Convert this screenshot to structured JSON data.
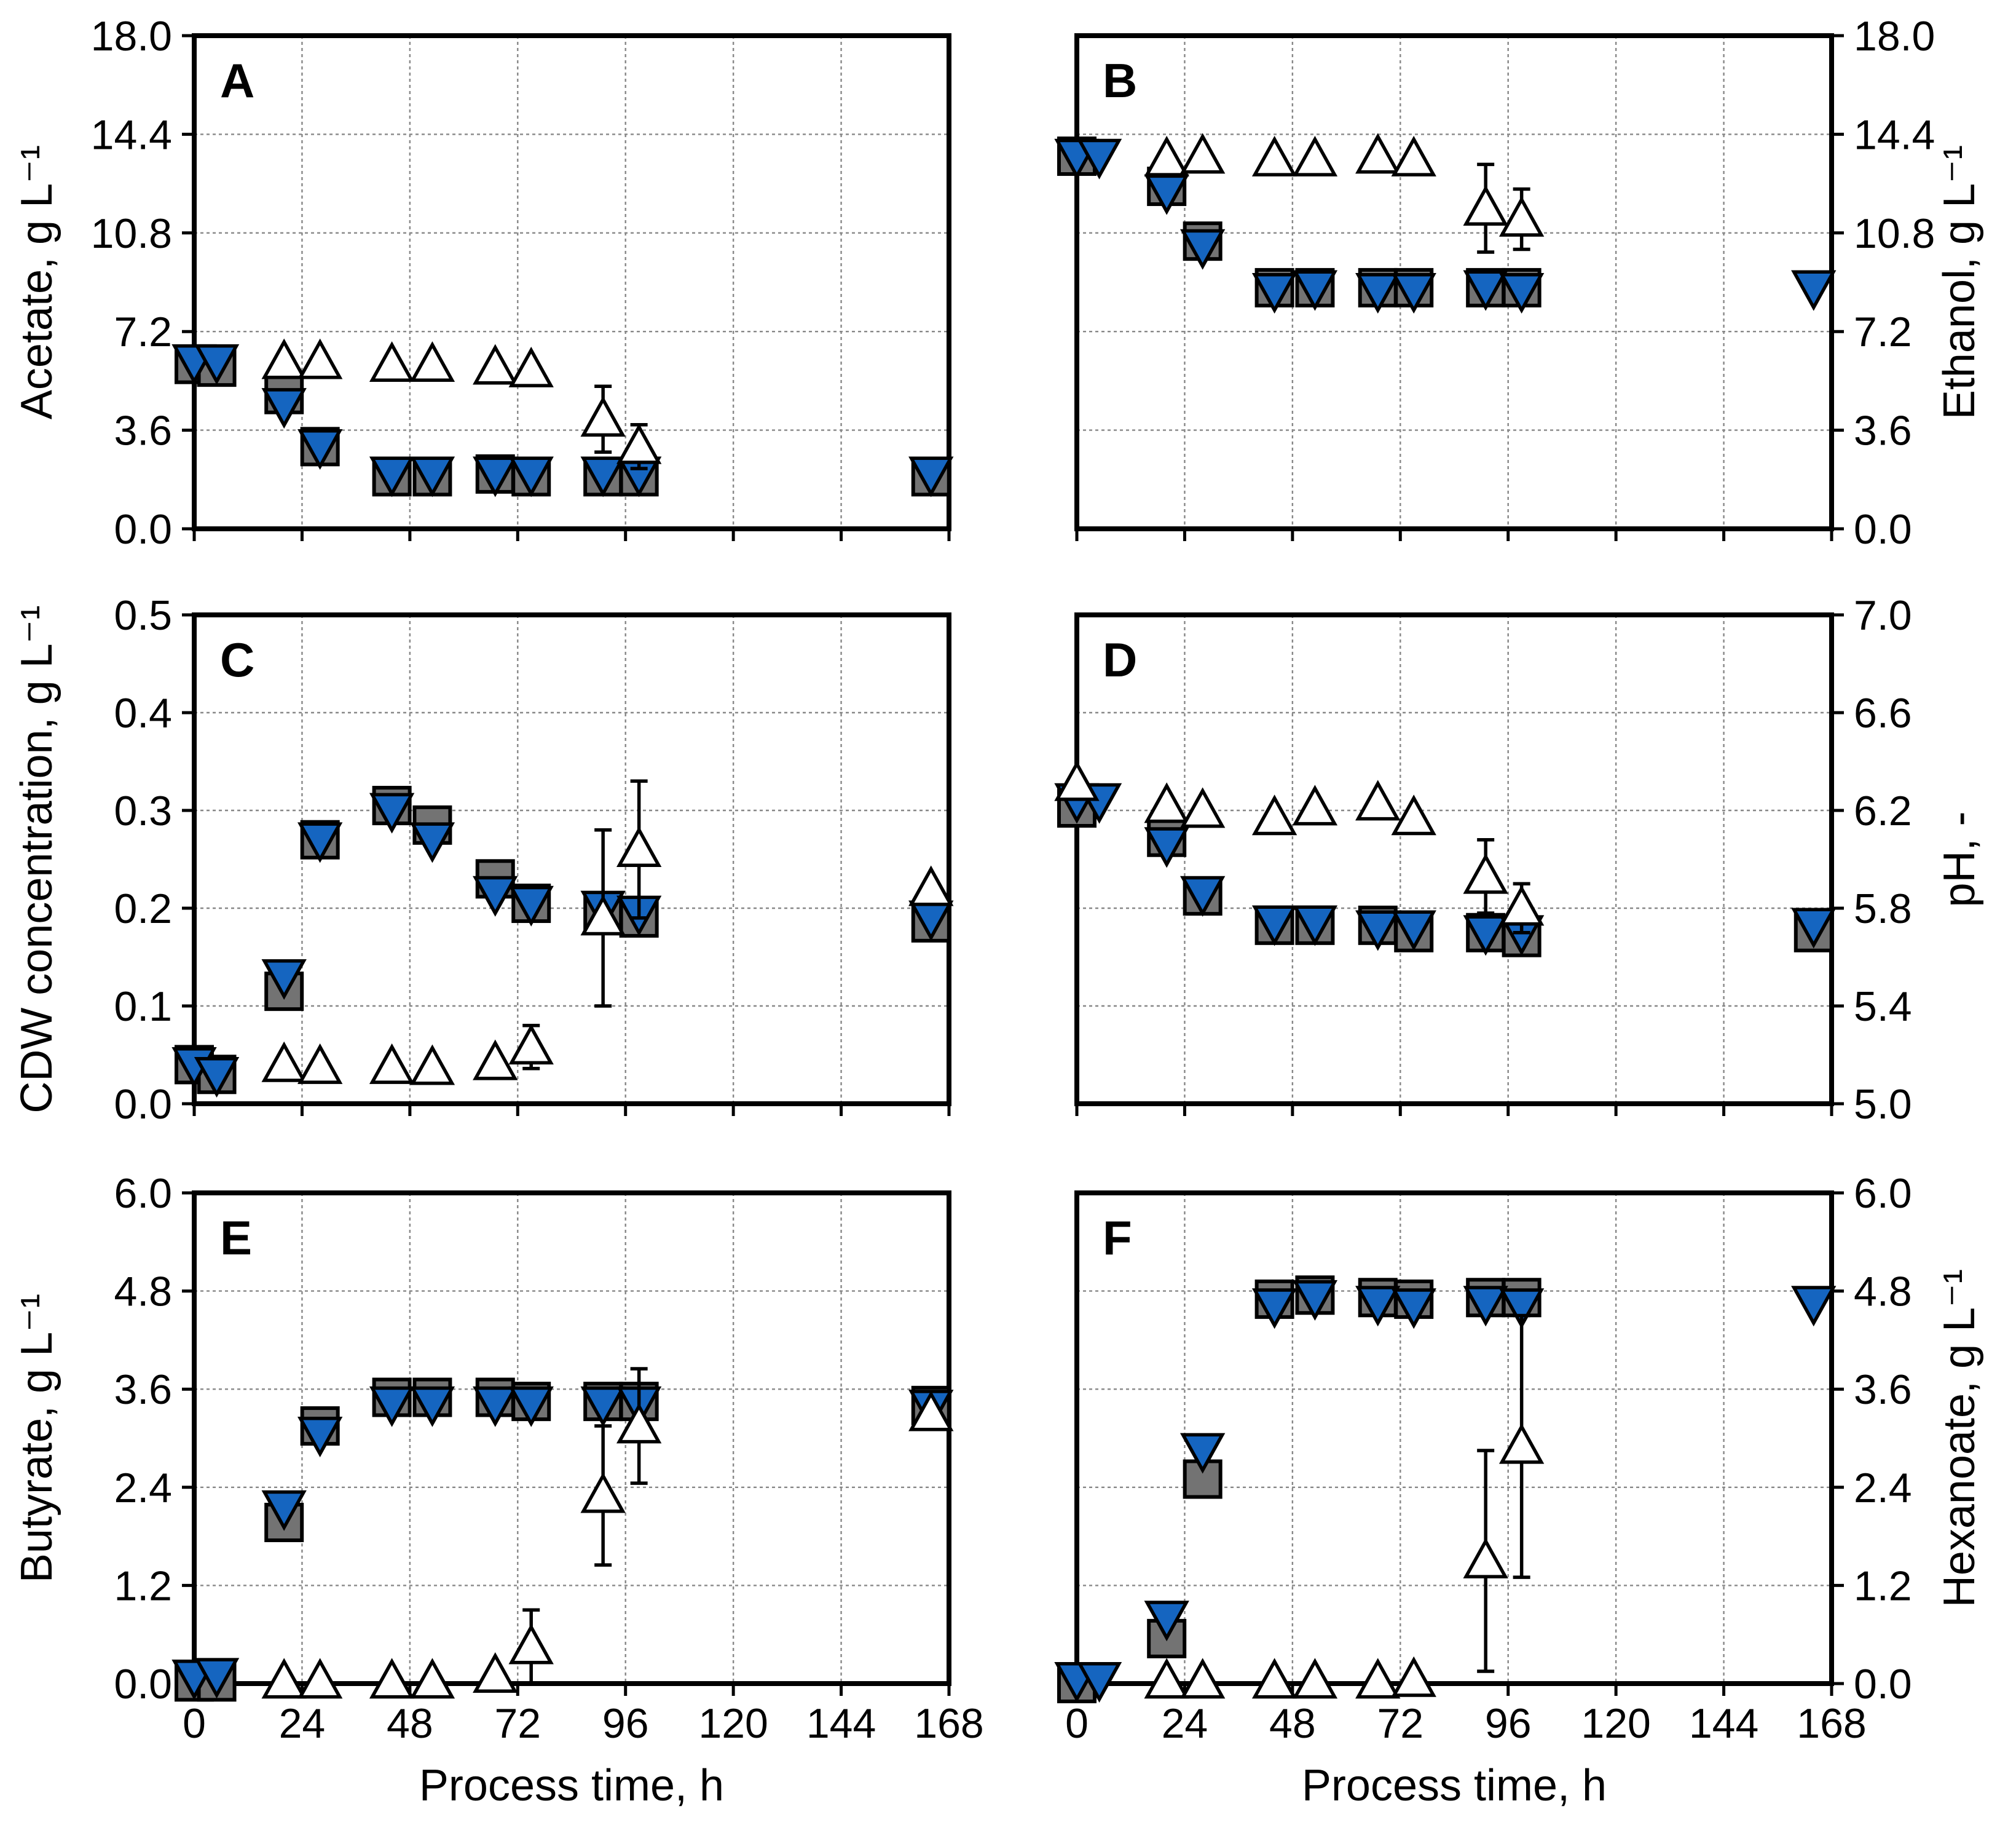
{
  "chart_data": [
    {
      "type": "scatter",
      "panel": "A",
      "ylabel": "Acetate, g L⁻¹",
      "xlabel": "",
      "xlim": [
        0,
        168
      ],
      "xticks": [
        0,
        24,
        48,
        72,
        96,
        120,
        144,
        168
      ],
      "xtick_labels": [
        "",
        "",
        "",
        "",
        "",
        "",
        "",
        ""
      ],
      "ylim": [
        0,
        18
      ],
      "yticks": [
        "0.0",
        "3.6",
        "7.2",
        "10.8",
        "14.4",
        "18.0"
      ],
      "y_axis_side": "left",
      "grid": true,
      "series": [
        {
          "marker": "square-gray",
          "points": [
            {
              "x": 0,
              "y": 6.0
            },
            {
              "x": 5,
              "y": 5.9
            },
            {
              "x": 20,
              "y": 4.9
            },
            {
              "x": 28,
              "y": 3.0
            },
            {
              "x": 44,
              "y": 1.9
            },
            {
              "x": 53,
              "y": 1.9
            },
            {
              "x": 67,
              "y": 2.0
            },
            {
              "x": 75,
              "y": 1.9
            },
            {
              "x": 91,
              "y": 1.9
            },
            {
              "x": 99,
              "y": 1.9
            },
            {
              "x": 164,
              "y": 1.9
            }
          ]
        },
        {
          "marker": "triangle-down-blue",
          "points": [
            {
              "x": 0,
              "y": 6.1
            },
            {
              "x": 5,
              "y": 6.1
            },
            {
              "x": 20,
              "y": 4.5
            },
            {
              "x": 28,
              "y": 3.0
            },
            {
              "x": 44,
              "y": 2.0
            },
            {
              "x": 53,
              "y": 2.0
            },
            {
              "x": 67,
              "y": 2.0
            },
            {
              "x": 75,
              "y": 2.0
            },
            {
              "x": 91,
              "y": 2.0
            },
            {
              "x": 99,
              "y": 2.0
            },
            {
              "x": 164,
              "y": 2.0
            }
          ]
        },
        {
          "marker": "triangle-up-open",
          "points": [
            {
              "x": 20,
              "y": 6.1
            },
            {
              "x": 28,
              "y": 6.1
            },
            {
              "x": 44,
              "y": 6.0
            },
            {
              "x": 53,
              "y": 6.0
            },
            {
              "x": 67,
              "y": 5.9
            },
            {
              "x": 75,
              "y": 5.8
            },
            {
              "x": 91,
              "y": 4.0,
              "err": 1.2
            },
            {
              "x": 99,
              "y": 3.0,
              "err": 0.8
            }
          ]
        }
      ]
    },
    {
      "type": "scatter",
      "panel": "B",
      "ylabel": "Ethanol, g L⁻¹",
      "xlabel": "",
      "xlim": [
        0,
        168
      ],
      "xticks": [
        0,
        24,
        48,
        72,
        96,
        120,
        144,
        168
      ],
      "xtick_labels": [
        "",
        "",
        "",
        "",
        "",
        "",
        "",
        ""
      ],
      "ylim": [
        0,
        18
      ],
      "yticks": [
        "0.0",
        "3.6",
        "7.2",
        "10.8",
        "14.4",
        "18.0"
      ],
      "y_axis_side": "right",
      "grid": true,
      "series": [
        {
          "marker": "square-gray",
          "points": [
            {
              "x": 0,
              "y": 13.6
            },
            {
              "x": 20,
              "y": 12.5
            },
            {
              "x": 28,
              "y": 10.5
            },
            {
              "x": 44,
              "y": 8.8
            },
            {
              "x": 53,
              "y": 8.8
            },
            {
              "x": 67,
              "y": 8.8
            },
            {
              "x": 75,
              "y": 8.8
            },
            {
              "x": 91,
              "y": 8.8
            },
            {
              "x": 99,
              "y": 8.8
            }
          ]
        },
        {
          "marker": "triangle-down-blue",
          "points": [
            {
              "x": 0,
              "y": 13.6
            },
            {
              "x": 5,
              "y": 13.6
            },
            {
              "x": 20,
              "y": 12.3
            },
            {
              "x": 28,
              "y": 10.3
            },
            {
              "x": 44,
              "y": 8.7
            },
            {
              "x": 53,
              "y": 8.8
            },
            {
              "x": 67,
              "y": 8.7
            },
            {
              "x": 75,
              "y": 8.7
            },
            {
              "x": 91,
              "y": 8.8
            },
            {
              "x": 99,
              "y": 8.7
            },
            {
              "x": 164,
              "y": 8.8
            }
          ]
        },
        {
          "marker": "triangle-up-open",
          "points": [
            {
              "x": 20,
              "y": 13.5
            },
            {
              "x": 28,
              "y": 13.6
            },
            {
              "x": 44,
              "y": 13.5
            },
            {
              "x": 53,
              "y": 13.5
            },
            {
              "x": 67,
              "y": 13.6
            },
            {
              "x": 75,
              "y": 13.5
            },
            {
              "x": 91,
              "y": 11.7,
              "err": 1.6
            },
            {
              "x": 99,
              "y": 11.3,
              "err": 1.1
            }
          ]
        }
      ]
    },
    {
      "type": "scatter",
      "panel": "C",
      "ylabel": "CDW concentration, g L⁻¹",
      "xlabel": "",
      "xlim": [
        0,
        168
      ],
      "xticks": [
        0,
        24,
        48,
        72,
        96,
        120,
        144,
        168
      ],
      "xtick_labels": [
        "",
        "",
        "",
        "",
        "",
        "",
        "",
        ""
      ],
      "ylim": [
        0,
        0.5
      ],
      "yticks": [
        "0.0",
        "0.1",
        "0.2",
        "0.3",
        "0.4",
        "0.5"
      ],
      "y_axis_side": "left",
      "grid": true,
      "series": [
        {
          "marker": "square-gray",
          "points": [
            {
              "x": 0,
              "y": 0.04
            },
            {
              "x": 5,
              "y": 0.03
            },
            {
              "x": 20,
              "y": 0.115
            },
            {
              "x": 28,
              "y": 0.27
            },
            {
              "x": 44,
              "y": 0.305
            },
            {
              "x": 53,
              "y": 0.285
            },
            {
              "x": 67,
              "y": 0.23
            },
            {
              "x": 75,
              "y": 0.205
            },
            {
              "x": 91,
              "y": 0.195
            },
            {
              "x": 99,
              "y": 0.19
            },
            {
              "x": 164,
              "y": 0.185
            }
          ]
        },
        {
          "marker": "triangle-down-blue",
          "points": [
            {
              "x": 0,
              "y": 0.04
            },
            {
              "x": 5,
              "y": 0.03
            },
            {
              "x": 20,
              "y": 0.13
            },
            {
              "x": 28,
              "y": 0.27
            },
            {
              "x": 44,
              "y": 0.3
            },
            {
              "x": 53,
              "y": 0.27
            },
            {
              "x": 67,
              "y": 0.215
            },
            {
              "x": 75,
              "y": 0.205
            },
            {
              "x": 91,
              "y": 0.2
            },
            {
              "x": 99,
              "y": 0.195
            },
            {
              "x": 164,
              "y": 0.19
            }
          ]
        },
        {
          "marker": "triangle-up-open",
          "points": [
            {
              "x": 20,
              "y": 0.04
            },
            {
              "x": 28,
              "y": 0.038
            },
            {
              "x": 44,
              "y": 0.038
            },
            {
              "x": 53,
              "y": 0.037
            },
            {
              "x": 67,
              "y": 0.042
            },
            {
              "x": 75,
              "y": 0.058,
              "err": 0.022
            },
            {
              "x": 91,
              "y": 0.19,
              "err": 0.09
            },
            {
              "x": 99,
              "y": 0.26,
              "err": 0.07
            },
            {
              "x": 164,
              "y": 0.22
            }
          ]
        }
      ]
    },
    {
      "type": "scatter",
      "panel": "D",
      "ylabel": "pH, -",
      "xlabel": "",
      "xlim": [
        0,
        168
      ],
      "xticks": [
        0,
        24,
        48,
        72,
        96,
        120,
        144,
        168
      ],
      "xtick_labels": [
        "",
        "",
        "",
        "",
        "",
        "",
        "",
        ""
      ],
      "ylim": [
        5.0,
        7.0
      ],
      "yticks": [
        "5.0",
        "5.4",
        "5.8",
        "6.2",
        "6.6",
        "7.0"
      ],
      "y_axis_side": "right",
      "grid": true,
      "series": [
        {
          "marker": "square-gray",
          "points": [
            {
              "x": 0,
              "y": 6.21
            },
            {
              "x": 20,
              "y": 6.09
            },
            {
              "x": 28,
              "y": 5.85
            },
            {
              "x": 44,
              "y": 5.73
            },
            {
              "x": 53,
              "y": 5.73
            },
            {
              "x": 67,
              "y": 5.73
            },
            {
              "x": 75,
              "y": 5.7
            },
            {
              "x": 91,
              "y": 5.7
            },
            {
              "x": 99,
              "y": 5.68
            },
            {
              "x": 164,
              "y": 5.7
            }
          ]
        },
        {
          "marker": "triangle-down-blue",
          "points": [
            {
              "x": 0,
              "y": 6.24
            },
            {
              "x": 5,
              "y": 6.24
            },
            {
              "x": 20,
              "y": 6.06
            },
            {
              "x": 28,
              "y": 5.86
            },
            {
              "x": 44,
              "y": 5.74
            },
            {
              "x": 53,
              "y": 5.74
            },
            {
              "x": 67,
              "y": 5.72
            },
            {
              "x": 75,
              "y": 5.72
            },
            {
              "x": 91,
              "y": 5.7
            },
            {
              "x": 99,
              "y": 5.7
            },
            {
              "x": 164,
              "y": 5.73
            }
          ]
        },
        {
          "marker": "triangle-up-open",
          "points": [
            {
              "x": 0,
              "y": 6.31
            },
            {
              "x": 20,
              "y": 6.22
            },
            {
              "x": 28,
              "y": 6.2
            },
            {
              "x": 44,
              "y": 6.17
            },
            {
              "x": 53,
              "y": 6.21
            },
            {
              "x": 67,
              "y": 6.23
            },
            {
              "x": 75,
              "y": 6.17
            },
            {
              "x": 91,
              "y": 5.93,
              "err": 0.15
            },
            {
              "x": 99,
              "y": 5.8,
              "err": 0.1
            }
          ]
        }
      ]
    },
    {
      "type": "scatter",
      "panel": "E",
      "ylabel": "Butyrate, g L⁻¹",
      "xlabel": "Process time, h",
      "xlim": [
        0,
        168
      ],
      "xticks": [
        0,
        24,
        48,
        72,
        96,
        120,
        144,
        168
      ],
      "xtick_labels": [
        "0",
        "24",
        "48",
        "72",
        "96",
        "120",
        "144",
        "168"
      ],
      "ylim": [
        0,
        6
      ],
      "yticks": [
        "0.0",
        "1.2",
        "2.4",
        "3.6",
        "4.8",
        "6.0"
      ],
      "y_axis_side": "left",
      "grid": true,
      "series": [
        {
          "marker": "square-gray",
          "points": [
            {
              "x": 0,
              "y": 0.02
            },
            {
              "x": 5,
              "y": 0.02
            },
            {
              "x": 20,
              "y": 1.97
            },
            {
              "x": 28,
              "y": 3.15
            },
            {
              "x": 44,
              "y": 3.5
            },
            {
              "x": 53,
              "y": 3.5
            },
            {
              "x": 67,
              "y": 3.5
            },
            {
              "x": 75,
              "y": 3.45
            },
            {
              "x": 91,
              "y": 3.45
            },
            {
              "x": 99,
              "y": 3.45
            },
            {
              "x": 164,
              "y": 3.4
            }
          ]
        },
        {
          "marker": "triangle-down-blue",
          "points": [
            {
              "x": 0,
              "y": 0.08
            },
            {
              "x": 5,
              "y": 0.1
            },
            {
              "x": 20,
              "y": 2.15
            },
            {
              "x": 28,
              "y": 3.05
            },
            {
              "x": 44,
              "y": 3.42
            },
            {
              "x": 53,
              "y": 3.42
            },
            {
              "x": 67,
              "y": 3.42
            },
            {
              "x": 75,
              "y": 3.42
            },
            {
              "x": 91,
              "y": 3.42
            },
            {
              "x": 99,
              "y": 3.42
            },
            {
              "x": 164,
              "y": 3.38
            }
          ]
        },
        {
          "marker": "triangle-up-open",
          "points": [
            {
              "x": 20,
              "y": 0.03
            },
            {
              "x": 28,
              "y": 0.03
            },
            {
              "x": 44,
              "y": 0.03
            },
            {
              "x": 53,
              "y": 0.03
            },
            {
              "x": 67,
              "y": 0.1
            },
            {
              "x": 75,
              "y": 0.45,
              "err": 0.45
            },
            {
              "x": 91,
              "y": 2.3,
              "err": 0.85
            },
            {
              "x": 99,
              "y": 3.15,
              "err": 0.7
            },
            {
              "x": 164,
              "y": 3.3
            }
          ]
        }
      ]
    },
    {
      "type": "scatter",
      "panel": "F",
      "ylabel": "Hexanoate, g L⁻¹",
      "xlabel": "Process time, h",
      "xlim": [
        0,
        168
      ],
      "xticks": [
        0,
        24,
        48,
        72,
        96,
        120,
        144,
        168
      ],
      "xtick_labels": [
        "0",
        "24",
        "48",
        "72",
        "96",
        "120",
        "144",
        "168"
      ],
      "ylim": [
        0,
        6
      ],
      "yticks": [
        "0.0",
        "1.2",
        "2.4",
        "3.6",
        "4.8",
        "6.0"
      ],
      "y_axis_side": "right",
      "grid": true,
      "series": [
        {
          "marker": "square-gray",
          "points": [
            {
              "x": 0,
              "y": 0.0
            },
            {
              "x": 20,
              "y": 0.55
            },
            {
              "x": 28,
              "y": 2.5
            },
            {
              "x": 44,
              "y": 4.7
            },
            {
              "x": 53,
              "y": 4.75
            },
            {
              "x": 67,
              "y": 4.72
            },
            {
              "x": 75,
              "y": 4.7
            },
            {
              "x": 91,
              "y": 4.72
            },
            {
              "x": 99,
              "y": 4.72
            }
          ]
        },
        {
          "marker": "triangle-down-blue",
          "points": [
            {
              "x": 0,
              "y": 0.05
            },
            {
              "x": 5,
              "y": 0.05
            },
            {
              "x": 20,
              "y": 0.8
            },
            {
              "x": 28,
              "y": 2.85
            },
            {
              "x": 44,
              "y": 4.62
            },
            {
              "x": 53,
              "y": 4.72
            },
            {
              "x": 67,
              "y": 4.65
            },
            {
              "x": 75,
              "y": 4.62
            },
            {
              "x": 91,
              "y": 4.65
            },
            {
              "x": 99,
              "y": 4.62
            },
            {
              "x": 164,
              "y": 4.65
            }
          ]
        },
        {
          "marker": "triangle-up-open",
          "points": [
            {
              "x": 20,
              "y": 0.03
            },
            {
              "x": 28,
              "y": 0.03
            },
            {
              "x": 44,
              "y": 0.03
            },
            {
              "x": 53,
              "y": 0.03
            },
            {
              "x": 67,
              "y": 0.03
            },
            {
              "x": 75,
              "y": 0.05
            },
            {
              "x": 91,
              "y": 1.5,
              "err": 1.35
            },
            {
              "x": 99,
              "y": 2.9,
              "err": 1.6
            }
          ]
        }
      ]
    }
  ]
}
